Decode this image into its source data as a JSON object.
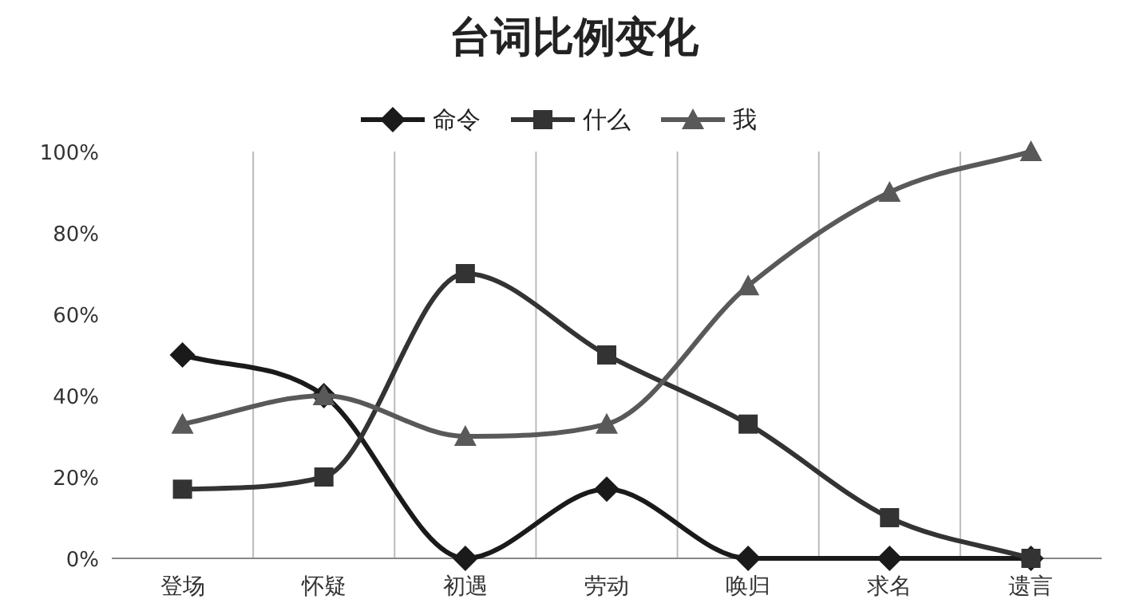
{
  "chart_data": {
    "type": "line",
    "title": "台词比例变化",
    "categories": [
      "登场",
      "怀疑",
      "初遇",
      "劳动",
      "唤归",
      "求名",
      "遗言"
    ],
    "series": [
      {
        "name": "命令",
        "color": "#1a1a1a",
        "marker": "diamond",
        "values": [
          50,
          40,
          0,
          17,
          0,
          0,
          0
        ]
      },
      {
        "name": "什么",
        "color": "#333333",
        "marker": "square",
        "values": [
          17,
          20,
          70,
          50,
          33,
          10,
          0
        ]
      },
      {
        "name": "我",
        "color": "#595959",
        "marker": "triangle",
        "values": [
          33,
          40,
          30,
          33,
          67,
          90,
          100
        ]
      }
    ],
    "ylim": [
      0,
      100
    ],
    "yticks": [
      {
        "value": 0,
        "label": "0%"
      },
      {
        "value": 20,
        "label": "20%"
      },
      {
        "value": 40,
        "label": "40%"
      },
      {
        "value": 60,
        "label": "60%"
      },
      {
        "value": 80,
        "label": "80%"
      },
      {
        "value": 100,
        "label": "100%"
      }
    ],
    "grid": "x",
    "legend": "top",
    "line_style": "solid"
  }
}
